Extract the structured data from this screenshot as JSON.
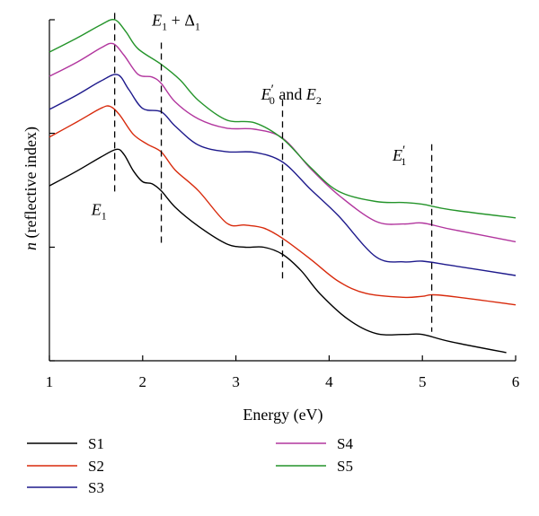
{
  "chart_data": {
    "type": "line",
    "title": "",
    "xlabel": "Energy (eV)",
    "ylabel": "n (reflective index)",
    "ylabel_parts": {
      "symbol": "n",
      "rest": " (reflective index)"
    },
    "xlim": [
      1,
      6
    ],
    "ylim": [
      0,
      10
    ],
    "xticks": [
      1,
      2,
      3,
      4,
      5,
      6
    ],
    "y_ticks_unlabeled": [
      0,
      3.33,
      6.67,
      10
    ],
    "grid": false,
    "legend_position": "bottom",
    "series": [
      {
        "name": "S1",
        "color": "#000000",
        "points": [
          [
            1,
            5.13
          ],
          [
            1.3,
            5.57
          ],
          [
            1.55,
            5.97
          ],
          [
            1.72,
            6.2
          ],
          [
            1.8,
            6.05
          ],
          [
            1.9,
            5.57
          ],
          [
            2.0,
            5.25
          ],
          [
            2.1,
            5.19
          ],
          [
            2.2,
            4.98
          ],
          [
            2.35,
            4.5
          ],
          [
            2.6,
            3.94
          ],
          [
            2.9,
            3.43
          ],
          [
            3.1,
            3.33
          ],
          [
            3.3,
            3.33
          ],
          [
            3.5,
            3.12
          ],
          [
            3.7,
            2.64
          ],
          [
            3.9,
            1.97
          ],
          [
            4.2,
            1.22
          ],
          [
            4.5,
            0.8
          ],
          [
            4.8,
            0.77
          ],
          [
            5.0,
            0.77
          ],
          [
            5.3,
            0.56
          ],
          [
            5.9,
            0.24
          ]
        ]
      },
      {
        "name": "S2",
        "color": "#d82a0c",
        "points": [
          [
            1,
            6.56
          ],
          [
            1.3,
            7.01
          ],
          [
            1.55,
            7.4
          ],
          [
            1.65,
            7.46
          ],
          [
            1.75,
            7.22
          ],
          [
            1.9,
            6.64
          ],
          [
            2.05,
            6.35
          ],
          [
            2.2,
            6.12
          ],
          [
            2.35,
            5.59
          ],
          [
            2.6,
            4.98
          ],
          [
            2.9,
            4.04
          ],
          [
            3.1,
            3.98
          ],
          [
            3.3,
            3.89
          ],
          [
            3.5,
            3.59
          ],
          [
            3.8,
            2.98
          ],
          [
            4.1,
            2.33
          ],
          [
            4.4,
            1.97
          ],
          [
            4.8,
            1.86
          ],
          [
            5.0,
            1.89
          ],
          [
            5.2,
            1.92
          ],
          [
            6.0,
            1.64
          ]
        ]
      },
      {
        "name": "S3",
        "color": "#1e1a8c",
        "points": [
          [
            1,
            7.37
          ],
          [
            1.3,
            7.8
          ],
          [
            1.55,
            8.2
          ],
          [
            1.73,
            8.39
          ],
          [
            1.85,
            7.96
          ],
          [
            2.0,
            7.4
          ],
          [
            2.2,
            7.3
          ],
          [
            2.35,
            6.88
          ],
          [
            2.6,
            6.32
          ],
          [
            2.9,
            6.13
          ],
          [
            3.2,
            6.11
          ],
          [
            3.5,
            5.83
          ],
          [
            3.8,
            5.03
          ],
          [
            4.1,
            4.25
          ],
          [
            4.5,
            3.05
          ],
          [
            4.8,
            2.9
          ],
          [
            5.0,
            2.92
          ],
          [
            5.3,
            2.8
          ],
          [
            6.0,
            2.5
          ]
        ]
      },
      {
        "name": "S4",
        "color": "#b2369e",
        "points": [
          [
            1,
            8.34
          ],
          [
            1.3,
            8.76
          ],
          [
            1.55,
            9.17
          ],
          [
            1.68,
            9.3
          ],
          [
            1.8,
            8.96
          ],
          [
            1.95,
            8.4
          ],
          [
            2.1,
            8.32
          ],
          [
            2.2,
            8.13
          ],
          [
            2.35,
            7.59
          ],
          [
            2.6,
            7.09
          ],
          [
            2.9,
            6.82
          ],
          [
            3.2,
            6.79
          ],
          [
            3.5,
            6.53
          ],
          [
            3.8,
            5.64
          ],
          [
            4.1,
            4.86
          ],
          [
            4.5,
            4.09
          ],
          [
            4.8,
            4.01
          ],
          [
            5.0,
            4.04
          ],
          [
            5.3,
            3.86
          ],
          [
            6.0,
            3.49
          ]
        ]
      },
      {
        "name": "S5",
        "color": "#24942a",
        "points": [
          [
            1,
            9.05
          ],
          [
            1.3,
            9.47
          ],
          [
            1.55,
            9.85
          ],
          [
            1.7,
            10.0
          ],
          [
            1.82,
            9.65
          ],
          [
            1.95,
            9.15
          ],
          [
            2.2,
            8.69
          ],
          [
            2.4,
            8.24
          ],
          [
            2.6,
            7.63
          ],
          [
            2.9,
            7.06
          ],
          [
            3.2,
            6.98
          ],
          [
            3.5,
            6.51
          ],
          [
            3.8,
            5.67
          ],
          [
            4.1,
            4.97
          ],
          [
            4.5,
            4.67
          ],
          [
            4.8,
            4.64
          ],
          [
            5.0,
            4.59
          ],
          [
            5.3,
            4.43
          ],
          [
            6.0,
            4.19
          ]
        ]
      }
    ],
    "markers": [
      {
        "x": 1.7,
        "y_from": 4.9,
        "y_to": 10.2
      },
      {
        "x": 2.2,
        "y_from": 3.4,
        "y_to": 9.33
      },
      {
        "x": 3.5,
        "y_from": 2.32,
        "y_to": 7.65
      },
      {
        "x": 5.1,
        "y_from": 0.85,
        "y_to": 6.35
      }
    ],
    "annotations": [
      {
        "id": "e1",
        "main": "E",
        "sub": "1",
        "x": 1.45,
        "y": 4.28
      },
      {
        "id": "e1d",
        "main": "E",
        "sub": "1",
        "rest": " + Δ",
        "sub2": "1",
        "x": 2.1,
        "y": 9.83
      },
      {
        "id": "e0e2",
        "main": "E",
        "sub": "0",
        "prime": "′",
        "rest": " and ",
        "main2": "E",
        "sub2": "2",
        "x": 3.27,
        "y": 7.66
      },
      {
        "id": "e1p",
        "main": "E",
        "sub": "1",
        "prime": "′",
        "x": 4.68,
        "y": 5.87
      }
    ]
  },
  "legend": {
    "items": [
      {
        "label": "S1",
        "color": "#000000"
      },
      {
        "label": "S2",
        "color": "#d82a0c"
      },
      {
        "label": "S3",
        "color": "#1e1a8c"
      },
      {
        "label": "S4",
        "color": "#b2369e"
      },
      {
        "label": "S5",
        "color": "#24942a"
      }
    ]
  }
}
